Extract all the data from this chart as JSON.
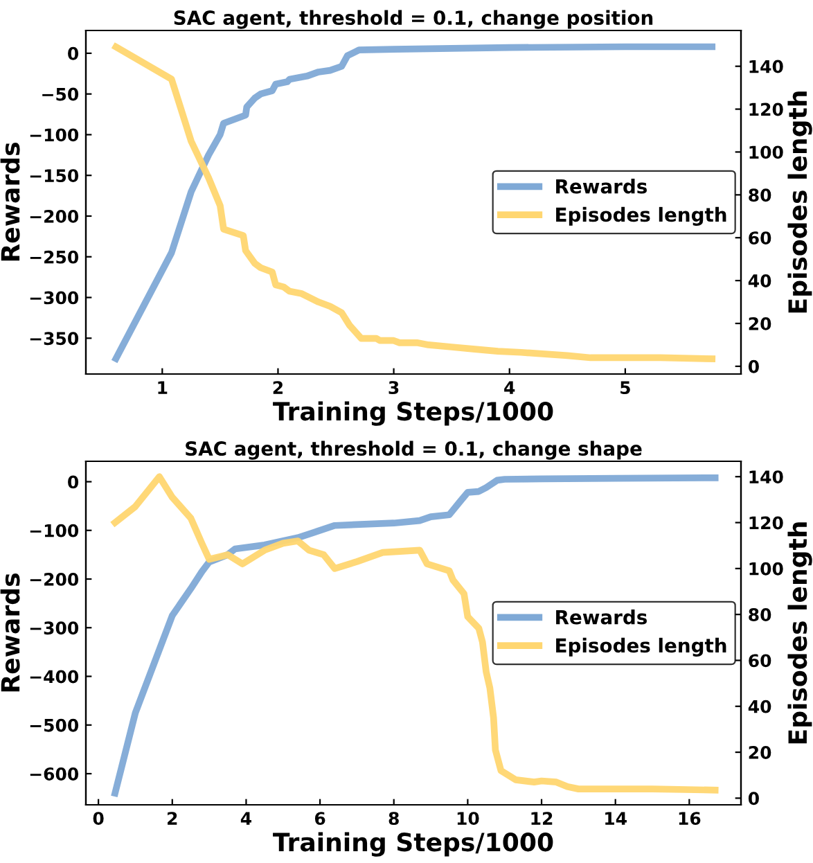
{
  "chart_data": [
    {
      "type": "line",
      "title": "SAC agent, threshold = 0.1, change position",
      "xlabel": "Training Steps/1000",
      "ylabel": "Rewards",
      "y2label": "Episodes length",
      "xlim": [
        0.34,
        6.0
      ],
      "xticks": [
        1,
        2,
        3,
        4,
        5
      ],
      "ylim": [
        -394,
        28
      ],
      "yticks": [
        {
          "value": -350,
          "label": "−350"
        },
        {
          "value": -300,
          "label": "−300"
        },
        {
          "value": -250,
          "label": "−250"
        },
        {
          "value": -200,
          "label": "−200"
        },
        {
          "value": -150,
          "label": "−150"
        },
        {
          "value": -100,
          "label": "−100"
        },
        {
          "value": -50,
          "label": "−50"
        },
        0
      ],
      "y2lim": [
        -3.6,
        156.7
      ],
      "y2ticks": [
        0,
        20,
        40,
        60,
        80,
        100,
        120,
        140
      ],
      "legend": "right",
      "grid": false,
      "series": [
        {
          "name": "Rewards",
          "color": "#7fa9d6",
          "x": [
            0.6,
            1.08,
            1.25,
            1.4,
            1.5,
            1.53,
            1.72,
            1.73,
            1.8,
            1.85,
            1.95,
            1.98,
            2.08,
            2.1,
            2.25,
            2.35,
            2.45,
            2.55,
            2.6,
            2.7,
            3,
            4,
            5,
            5.75
          ],
          "values": [
            -375,
            -245,
            -170,
            -125,
            -100,
            -86,
            -76,
            -66,
            -55,
            -50,
            -46,
            -38,
            -35,
            -32,
            -28,
            -23,
            -21,
            -16,
            -3,
            4,
            5,
            7,
            8,
            8
          ]
        },
        {
          "name": "Episodes length",
          "color": "#ffd670",
          "axis": "y2",
          "x": [
            0.6,
            1.08,
            1.25,
            1.4,
            1.5,
            1.53,
            1.7,
            1.72,
            1.8,
            1.85,
            1.95,
            1.98,
            2.05,
            2.1,
            2.2,
            2.35,
            2.45,
            2.55,
            2.62,
            2.72,
            2.85,
            2.88,
            3.0,
            3.05,
            3.2,
            3.3,
            3.5,
            3.7,
            3.9,
            4.1,
            4.5,
            4.7,
            5,
            5.3,
            5.75
          ],
          "values": [
            149,
            134,
            105,
            88,
            75,
            64,
            61,
            54,
            48,
            46,
            44,
            38,
            37,
            35,
            34,
            30,
            28,
            25,
            19,
            13,
            13,
            12,
            12,
            11,
            11,
            10,
            9,
            8,
            7,
            6.5,
            5,
            4,
            4,
            4,
            3.5
          ]
        }
      ]
    },
    {
      "type": "line",
      "title": "SAC agent, threshold = 0.1, change shape",
      "xlabel": "Training Steps/1000",
      "ylabel": "Rewards",
      "y2label": "Episodes length",
      "xlim": [
        -0.34,
        17.4
      ],
      "xticks": [
        0,
        2,
        4,
        6,
        8,
        10,
        12,
        14,
        16
      ],
      "ylim": [
        -664,
        42
      ],
      "yticks": [
        {
          "value": -600,
          "label": "−600"
        },
        {
          "value": -500,
          "label": "−500"
        },
        {
          "value": -400,
          "label": "−400"
        },
        {
          "value": -300,
          "label": "−300"
        },
        {
          "value": -200,
          "label": "−200"
        },
        {
          "value": -100,
          "label": "−100"
        },
        0
      ],
      "y2lim": [
        -2.9,
        146.7
      ],
      "y2ticks": [
        0,
        20,
        40,
        60,
        80,
        100,
        120,
        140
      ],
      "legend": "right",
      "grid": false,
      "series": [
        {
          "name": "Rewards",
          "color": "#7fa9d6",
          "x": [
            0.45,
            1.0,
            2.0,
            2.5,
            2.8,
            3.0,
            3.5,
            3.7,
            4.5,
            5.4,
            5.8,
            6.4,
            8,
            8.7,
            9.0,
            9.5,
            9.8,
            10.0,
            10.3,
            10.5,
            10.8,
            11,
            12,
            14,
            16.7
          ],
          "values": [
            -640,
            -475,
            -275,
            -220,
            -185,
            -165,
            -150,
            -138,
            -130,
            -115,
            -105,
            -90,
            -85,
            -80,
            -72,
            -68,
            -40,
            -22,
            -20,
            -12,
            3,
            5,
            6,
            7,
            8
          ]
        },
        {
          "name": "Episodes length",
          "color": "#ffd670",
          "axis": "y2",
          "x": [
            0.45,
            1.0,
            1.65,
            2.0,
            2.5,
            2.8,
            3.0,
            3.5,
            3.9,
            4.5,
            5.0,
            5.4,
            5.7,
            6.1,
            6.4,
            7.0,
            7.7,
            8.7,
            8.9,
            9.5,
            9.6,
            9.9,
            10.0,
            10.3,
            10.4,
            10.5,
            10.6,
            10.7,
            10.75,
            10.9,
            11.3,
            11.8,
            12,
            12.4,
            12.7,
            13,
            14,
            15,
            16.7
          ],
          "values": [
            120,
            127,
            140,
            131,
            122,
            111,
            104,
            106,
            102,
            108,
            111,
            112,
            108,
            106,
            100,
            103,
            107,
            108,
            102,
            99,
            95,
            89,
            79,
            74,
            68,
            55,
            48,
            35,
            21,
            12,
            8,
            7,
            7.5,
            7,
            5,
            4,
            4,
            4,
            3.5
          ]
        }
      ]
    }
  ]
}
